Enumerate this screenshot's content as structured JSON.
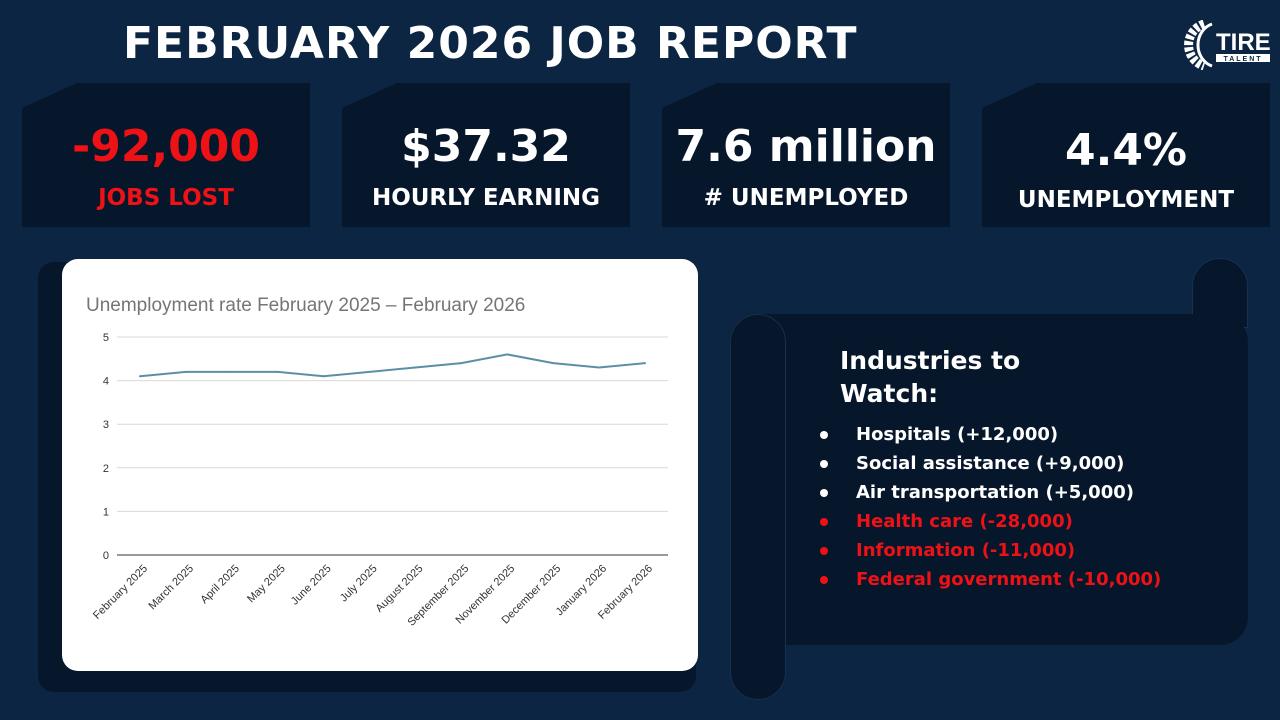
{
  "header": {
    "title": "FEBRUARY 2026 JOB REPORT",
    "logo_text": "TIRE TALENT"
  },
  "stats": [
    {
      "value": "-92,000",
      "label": "JOBS LOST",
      "color": "#ee1116"
    },
    {
      "value": "$37.32",
      "label": "HOURLY EARNING",
      "color": "#ffffff"
    },
    {
      "value": "7.6 million",
      "label": "# UNEMPLOYED",
      "color": "#ffffff"
    },
    {
      "value": "4.4%",
      "label": "UNEMPLOYMENT",
      "color": "#ffffff"
    }
  ],
  "chart_data": {
    "type": "line",
    "title": "Unemployment rate February 2025 – February 2026",
    "categories": [
      "February 2025",
      "March 2025",
      "April 2025",
      "May 2025",
      "June 2025",
      "July 2025",
      "August 2025",
      "September 2025",
      "November 2025",
      "December 2025",
      "January 2026",
      "February 2026"
    ],
    "values": [
      4.1,
      4.2,
      4.2,
      4.2,
      4.1,
      4.2,
      4.3,
      4.4,
      4.6,
      4.4,
      4.3,
      4.4
    ],
    "ylim": [
      0,
      5
    ],
    "yticks": [
      "0",
      "1",
      "2",
      "3",
      "4",
      "5"
    ],
    "grid": true,
    "line_color": "#5b8fa8"
  },
  "industries": {
    "title": "Industries to Watch:",
    "items": [
      {
        "text": "Hospitals  (+12,000)",
        "trend": "up"
      },
      {
        "text": "Social assistance  (+9,000)",
        "trend": "up"
      },
      {
        "text": "Air transportation  (+5,000)",
        "trend": "up"
      },
      {
        "text": "Health care (-28,000)",
        "trend": "down"
      },
      {
        "text": "Information  (-11,000)",
        "trend": "down"
      },
      {
        "text": "Federal government (-10,000)",
        "trend": "down"
      }
    ]
  }
}
